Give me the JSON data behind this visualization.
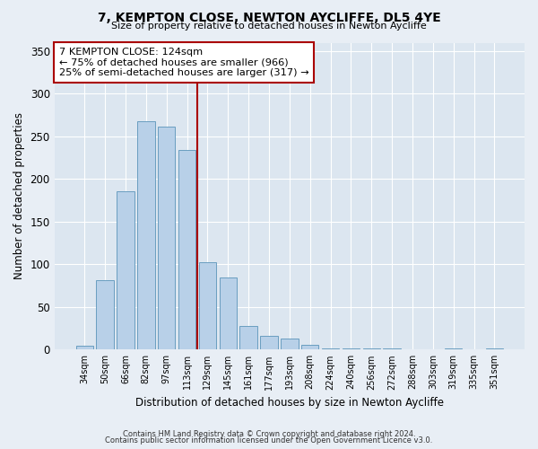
{
  "title": "7, KEMPTON CLOSE, NEWTON AYCLIFFE, DL5 4YE",
  "subtitle": "Size of property relative to detached houses in Newton Aycliffe",
  "xlabel": "Distribution of detached houses by size in Newton Aycliffe",
  "ylabel": "Number of detached properties",
  "bar_labels": [
    "34sqm",
    "50sqm",
    "66sqm",
    "82sqm",
    "97sqm",
    "113sqm",
    "129sqm",
    "145sqm",
    "161sqm",
    "177sqm",
    "193sqm",
    "208sqm",
    "224sqm",
    "240sqm",
    "256sqm",
    "272sqm",
    "288sqm",
    "303sqm",
    "319sqm",
    "335sqm",
    "351sqm"
  ],
  "bar_values": [
    5,
    81,
    186,
    268,
    262,
    234,
    102,
    85,
    28,
    16,
    13,
    6,
    1,
    1,
    1,
    1,
    0,
    0,
    1,
    0,
    1
  ],
  "bar_color": "#b8d0e8",
  "bar_edge_color": "#6a9ec0",
  "vline_x": 5.5,
  "vline_color": "#aa0000",
  "annotation_title": "7 KEMPTON CLOSE: 124sqm",
  "annotation_line1": "← 75% of detached houses are smaller (966)",
  "annotation_line2": "25% of semi-detached houses are larger (317) →",
  "annotation_box_color": "#ffffff",
  "annotation_box_edge": "#aa0000",
  "ylim": [
    0,
    360
  ],
  "yticks": [
    0,
    50,
    100,
    150,
    200,
    250,
    300,
    350
  ],
  "footer1": "Contains HM Land Registry data © Crown copyright and database right 2024.",
  "footer2": "Contains public sector information licensed under the Open Government Licence v3.0.",
  "bg_color": "#e8eef5",
  "plot_bg_color": "#dce6f0",
  "grid_color": "#ffffff"
}
